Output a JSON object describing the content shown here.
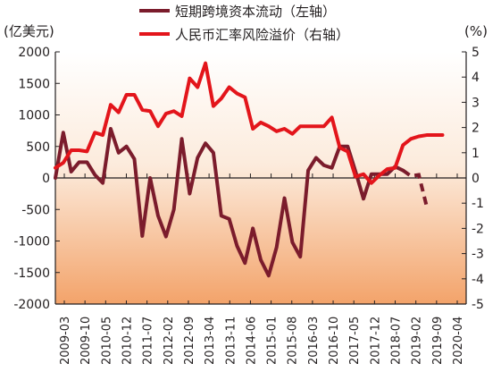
{
  "chart_data": {
    "type": "line",
    "left_axis": {
      "label": "(亿美元)",
      "range": [
        -2000,
        2000
      ],
      "ticks": [
        2000,
        1500,
        1000,
        500,
        0,
        -500,
        -1000,
        -1500,
        -2000
      ],
      "tick_labels": [
        "2000",
        "1500",
        "1000",
        "500",
        "0",
        "-500",
        "-1000",
        "-1500",
        "-2000"
      ]
    },
    "right_axis": {
      "label": "(%)",
      "range": [
        -5,
        5
      ],
      "ticks": [
        5,
        4,
        3,
        2,
        1,
        0,
        -1,
        -2,
        -3,
        -4,
        -5
      ],
      "tick_labels": [
        "5",
        "4",
        "3",
        "2",
        "1",
        "0",
        "-1",
        "-2",
        "-3",
        "-4",
        "-5"
      ]
    },
    "x_tick_labels": [
      "2009-03",
      "2009-10",
      "2010-05",
      "2010-12",
      "2011-07",
      "2012-02",
      "2012-09",
      "2013-04",
      "2013-11",
      "2014-06",
      "2015-01",
      "2015-08",
      "2016-03",
      "2016-10",
      "2017-05",
      "2017-12",
      "2018-07",
      "2019-02",
      "2019-09",
      "2020-04"
    ],
    "x_range": [
      0,
      52
    ],
    "legend_position": "top",
    "grid": false,
    "background": "gradient, white at top to light orange at bottom",
    "series": [
      {
        "name": "短期跨境资本流动（左轴）",
        "axis": "left",
        "color": "#7b1c2c",
        "x": [
          0,
          1,
          2,
          3,
          4,
          5,
          6,
          7,
          8,
          9,
          10,
          11,
          12,
          13,
          14,
          15,
          16,
          17,
          18,
          19,
          20,
          21,
          22,
          23,
          24,
          25,
          26,
          27,
          28,
          29,
          30,
          31,
          32,
          33,
          34,
          35,
          36,
          37,
          38,
          39,
          40,
          41,
          42,
          43,
          44,
          45,
          46,
          47
        ],
        "values": [
          0,
          720,
          100,
          250,
          250,
          50,
          -80,
          780,
          400,
          500,
          300,
          -920,
          0,
          -600,
          -930,
          -500,
          620,
          -250,
          320,
          550,
          400,
          -600,
          -650,
          -1080,
          -1350,
          -800,
          -1300,
          -1550,
          -1100,
          -320,
          -1020,
          -1250,
          120,
          320,
          200,
          160,
          500,
          500,
          100,
          -330,
          60,
          60,
          60,
          180,
          120,
          30,
          50,
          -450
        ],
        "dashed_from_index": 44
      },
      {
        "name": "人民币汇率风险溢价（右轴）",
        "axis": "right",
        "color": "#e3151b",
        "x": [
          0,
          1,
          2,
          3,
          4,
          5,
          6,
          7,
          8,
          9,
          10,
          11,
          12,
          13,
          14,
          15,
          16,
          17,
          18,
          19,
          20,
          21,
          22,
          23,
          24,
          25,
          26,
          27,
          28,
          29,
          30,
          31,
          32,
          33,
          34,
          35,
          36,
          37,
          38,
          39,
          40,
          41,
          42,
          43,
          44,
          45,
          46,
          47,
          48,
          49
        ],
        "values": [
          0.4,
          0.6,
          1.1,
          1.1,
          1.05,
          1.8,
          1.7,
          2.9,
          2.6,
          3.3,
          3.3,
          2.7,
          2.65,
          2.05,
          2.55,
          2.65,
          2.45,
          3.95,
          3.6,
          4.55,
          2.85,
          3.15,
          3.6,
          3.35,
          3.2,
          1.95,
          2.2,
          2.05,
          1.85,
          1.95,
          1.75,
          2.05,
          2.05,
          2.05,
          2.05,
          2.4,
          1.2,
          1.05,
          0.05,
          0.15,
          -0.2,
          0.1,
          0.35,
          0.4,
          1.3,
          1.55,
          1.65,
          1.7,
          1.7,
          1.7
        ]
      }
    ]
  }
}
